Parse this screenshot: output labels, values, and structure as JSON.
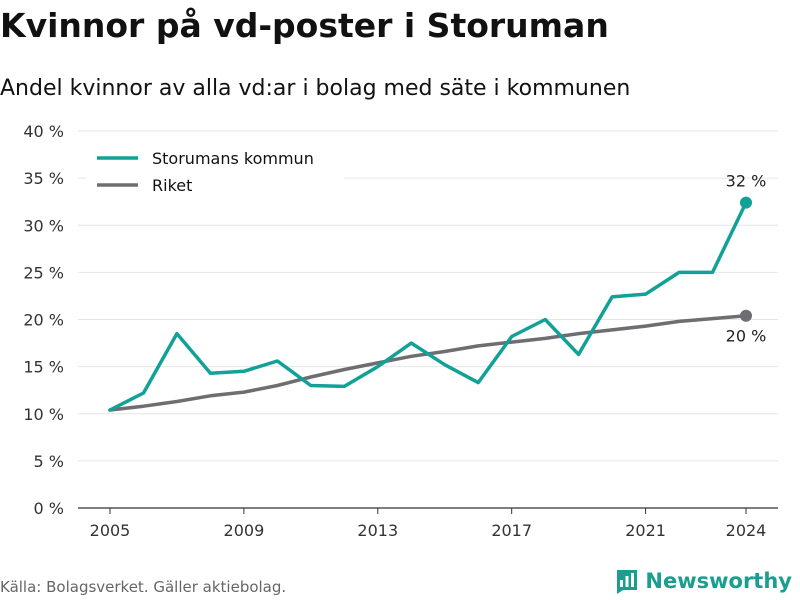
{
  "title": "Kvinnor på vd-poster i Storuman",
  "subtitle": "Andel kvinnor av alla vd:ar i bolag med säte i kommunen",
  "source": "Källa: Bolagsverket. Gäller aktiebolag.",
  "brand": "Newsworthy",
  "colors": {
    "accent": "#12a197",
    "secondary": "#6e6d72",
    "brand": "#1a9e8f"
  },
  "chart_data": {
    "type": "line",
    "x": [
      2005,
      2006,
      2007,
      2008,
      2009,
      2010,
      2011,
      2012,
      2013,
      2014,
      2015,
      2016,
      2017,
      2018,
      2019,
      2020,
      2021,
      2022,
      2023,
      2024
    ],
    "series": [
      {
        "name": "Storumans kommun",
        "color": "#12a197",
        "values": [
          10.4,
          12.2,
          18.5,
          14.3,
          14.5,
          15.6,
          13.0,
          12.9,
          15.0,
          17.5,
          15.2,
          13.3,
          18.2,
          20.0,
          16.3,
          22.4,
          22.7,
          25.0,
          25.0,
          32.4
        ],
        "end_label": "32 %"
      },
      {
        "name": "Riket",
        "color": "#6e6d72",
        "values": [
          10.4,
          10.8,
          11.3,
          11.9,
          12.3,
          13.0,
          13.9,
          14.7,
          15.4,
          16.1,
          16.6,
          17.2,
          17.6,
          18.0,
          18.5,
          18.9,
          19.3,
          19.8,
          20.1,
          20.4
        ],
        "end_label": "20 %"
      }
    ],
    "x_ticks": [
      "2005",
      "2009",
      "2013",
      "2017",
      "2021",
      "2024"
    ],
    "y_ticks": [
      "0 %",
      "5 %",
      "10 %",
      "15 %",
      "20 %",
      "25 %",
      "30 %",
      "35 %",
      "40 %"
    ],
    "ylim": [
      0,
      40
    ],
    "xlim": [
      2005,
      2024
    ],
    "grid": true,
    "legend_position": "top-left"
  }
}
